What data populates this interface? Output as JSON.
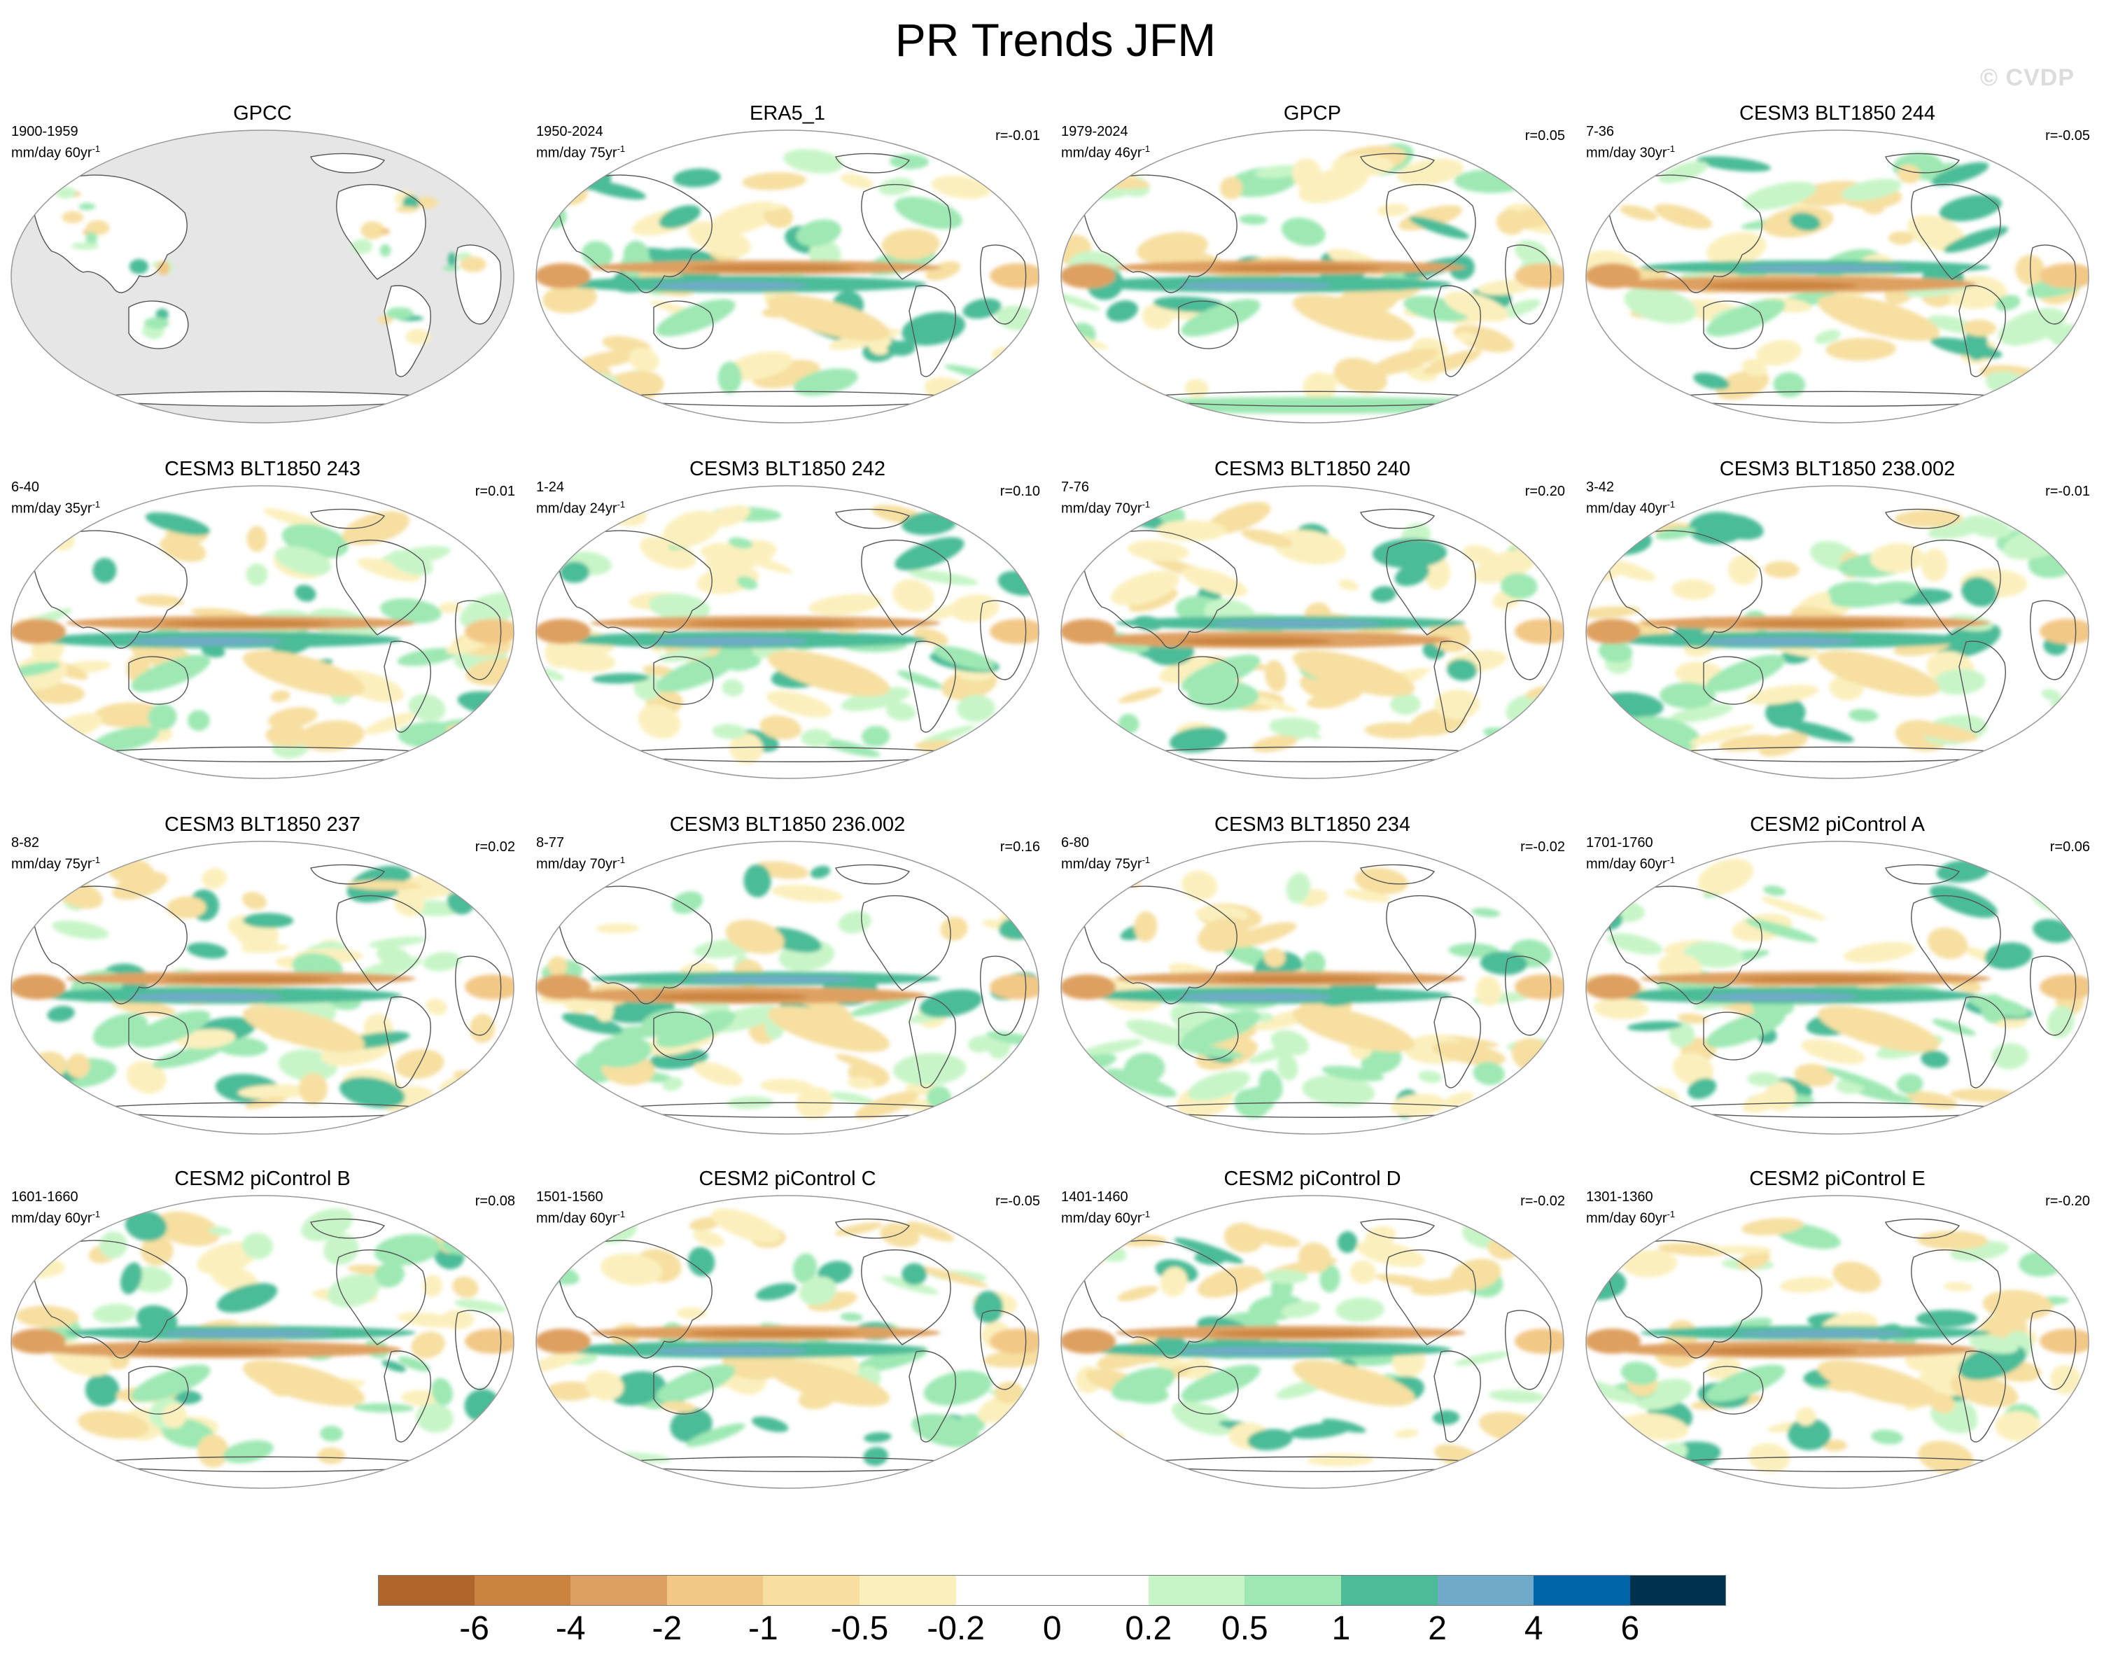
{
  "title": "PR Trends JFM",
  "watermark": "© CVDP",
  "units_suffix": "yr",
  "colors": {
    "land_missing": "#e6e6e6",
    "map_outline": "#999999",
    "scale": [
      "#b0652a",
      "#ca843f",
      "#dea060",
      "#f2c887",
      "#f6dfa0",
      "#fbf0bd",
      "#ffffff",
      "#ffffff",
      "#c8f5c8",
      "#9ee8b4",
      "#4cbc98",
      "#70aac8",
      "#0064a8",
      "#00324e"
    ]
  },
  "panels": [
    {
      "title": "GPCC",
      "period": "1900-1959",
      "units": "mm/day 60yr",
      "r": "",
      "land_only": true
    },
    {
      "title": "ERA5_1",
      "period": "1950-2024",
      "units": "mm/day 75yr",
      "r": "r=-0.01"
    },
    {
      "title": "GPCP",
      "period": "1979-2024",
      "units": "mm/day 46yr",
      "r": "r=0.05"
    },
    {
      "title": "CESM3 BLT1850 244",
      "period": "7-36",
      "units": "mm/day 30yr",
      "r": "r=-0.05"
    },
    {
      "title": "CESM3 BLT1850 243",
      "period": "6-40",
      "units": "mm/day 35yr",
      "r": "r=0.01"
    },
    {
      "title": "CESM3 BLT1850 242",
      "period": "1-24",
      "units": "mm/day 24yr",
      "r": "r=0.10"
    },
    {
      "title": "CESM3 BLT1850 240",
      "period": "7-76",
      "units": "mm/day 70yr",
      "r": "r=0.20"
    },
    {
      "title": "CESM3 BLT1850 238.002",
      "period": "3-42",
      "units": "mm/day 40yr",
      "r": "r=-0.01"
    },
    {
      "title": "CESM3 BLT1850 237",
      "period": "8-82",
      "units": "mm/day 75yr",
      "r": "r=0.02"
    },
    {
      "title": "CESM3 BLT1850 236.002",
      "period": "8-77",
      "units": "mm/day 70yr",
      "r": "r=0.16"
    },
    {
      "title": "CESM3 BLT1850 234",
      "period": "6-80",
      "units": "mm/day 75yr",
      "r": "r=-0.02"
    },
    {
      "title": "CESM2 piControl A",
      "period": "1701-1760",
      "units": "mm/day 60yr",
      "r": "r=0.06"
    },
    {
      "title": "CESM2 piControl B",
      "period": "1601-1660",
      "units": "mm/day 60yr",
      "r": "r=0.08"
    },
    {
      "title": "CESM2 piControl C",
      "period": "1501-1560",
      "units": "mm/day 60yr",
      "r": "r=-0.05"
    },
    {
      "title": "CESM2 piControl D",
      "period": "1401-1460",
      "units": "mm/day 60yr",
      "r": "r=-0.02"
    },
    {
      "title": "CESM2 piControl E",
      "period": "1301-1360",
      "units": "mm/day 60yr",
      "r": "r=-0.20"
    }
  ],
  "colorbar": {
    "labels": [
      "-6",
      "-4",
      "-2",
      "-1",
      "-0.5",
      "-0.2",
      "0",
      "0.2",
      "0.5",
      "1",
      "2",
      "4",
      "6"
    ]
  }
}
